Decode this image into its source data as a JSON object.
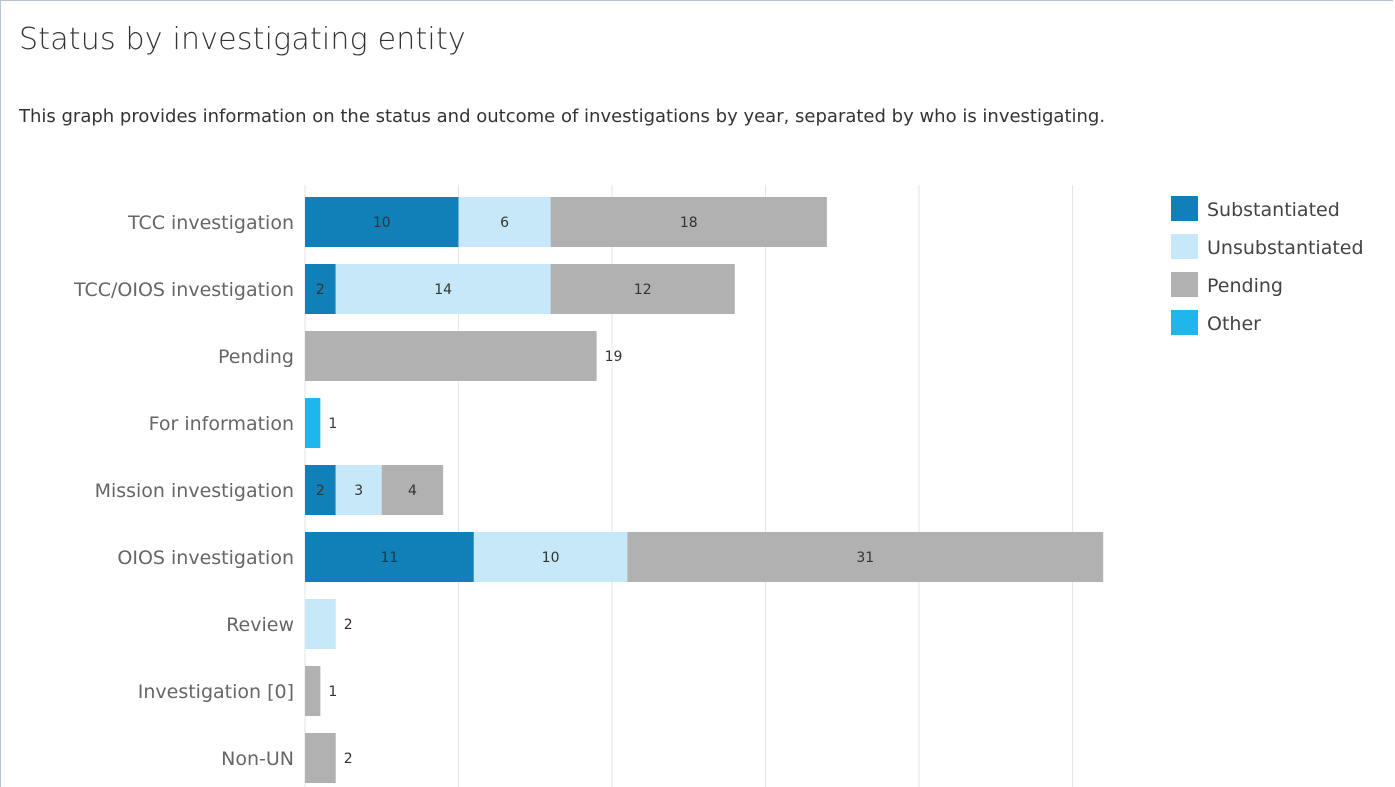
{
  "header": {
    "title": "Status by investigating entity",
    "description": "This graph provides information on the status and outcome of investigations by year, separated by who is investigating."
  },
  "chart_data": {
    "type": "bar",
    "orientation": "horizontal",
    "stacked": true,
    "categories": [
      "TCC investigation",
      "TCC/OIOS investigation",
      "Pending",
      "For information",
      "Mission investigation",
      "OIOS investigation",
      "Review",
      "Investigation [0]",
      "Non-UN"
    ],
    "series": [
      {
        "name": "Substantiated",
        "color": "#1180b8",
        "values": [
          10,
          2,
          0,
          0,
          2,
          11,
          0,
          0,
          0
        ]
      },
      {
        "name": "Unsubstantiated",
        "color": "#c6e8f8",
        "values": [
          6,
          14,
          0,
          0,
          3,
          10,
          2,
          0,
          0
        ]
      },
      {
        "name": "Pending",
        "color": "#b1b1b1",
        "values": [
          18,
          12,
          19,
          0,
          4,
          31,
          0,
          1,
          2
        ]
      },
      {
        "name": "Other",
        "color": "#1fb6ec",
        "values": [
          0,
          0,
          0,
          1,
          0,
          0,
          0,
          0,
          0
        ]
      }
    ],
    "xlim": [
      0,
      55
    ],
    "grid": true,
    "legend": "top-right"
  }
}
